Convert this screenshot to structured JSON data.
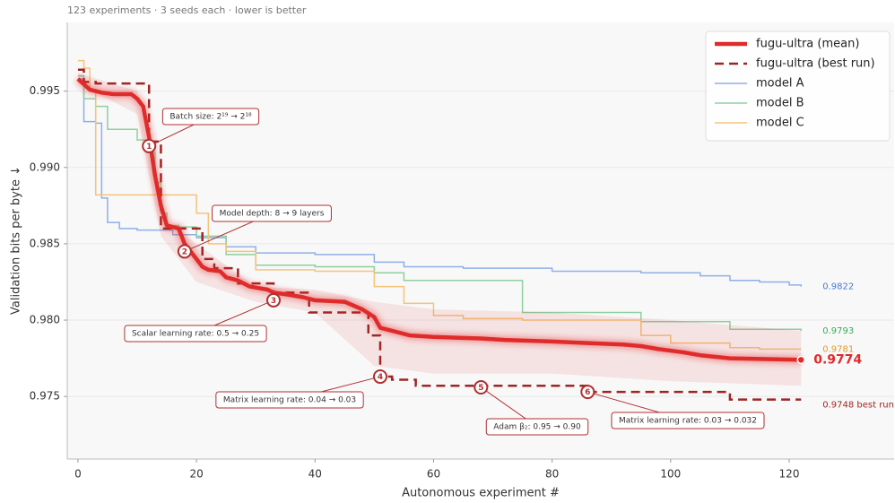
{
  "chart_data": {
    "type": "line",
    "subtitle": "123 experiments · 3 seeds each · lower is better",
    "x_label": "Autonomous experiment #",
    "y_label": "Validation bits per byte  ↓",
    "xlim": [
      -1.8,
      137.7
    ],
    "ylim": [
      0.9709,
      0.9995
    ],
    "xticks": [
      0,
      20,
      40,
      60,
      80,
      100,
      120
    ],
    "yticks": [
      0.975,
      {
        "value": 0.98,
        "label": "0.980"
      },
      0.985,
      {
        "value": 0.99,
        "label": "0.990"
      },
      0.995
    ],
    "grid": true,
    "legend": "upper right",
    "series": [
      {
        "name": "fugu-ultra (mean)",
        "color": "#e02b2b",
        "style": "thick",
        "x": [
          0,
          2,
          4,
          6,
          9,
          10,
          11,
          12,
          13,
          14,
          15,
          17,
          18,
          19,
          20,
          21,
          22,
          24,
          25,
          27,
          29,
          32,
          33,
          35,
          38,
          40,
          45,
          48,
          50,
          51,
          53,
          56,
          60,
          68,
          72,
          80,
          86,
          92,
          95,
          98,
          102,
          105,
          110,
          122
        ],
        "values": [
          0.9958,
          0.9951,
          0.9949,
          0.9948,
          0.9948,
          0.9945,
          0.994,
          0.992,
          0.9895,
          0.9875,
          0.9862,
          0.986,
          0.985,
          0.9845,
          0.984,
          0.9835,
          0.9833,
          0.9832,
          0.9828,
          0.9826,
          0.9822,
          0.982,
          0.9818,
          0.9817,
          0.9815,
          0.9813,
          0.9812,
          0.9807,
          0.9802,
          0.9795,
          0.9793,
          0.979,
          0.9789,
          0.9788,
          0.9787,
          0.9786,
          0.9785,
          0.9784,
          0.9783,
          0.9781,
          0.9779,
          0.9777,
          0.9775,
          0.9774
        ],
        "band_x": [
          0,
          10,
          14,
          20,
          30,
          40,
          50,
          60,
          80,
          100,
          122
        ],
        "band_lower": [
          0.9955,
          0.9935,
          0.9855,
          0.9825,
          0.9812,
          0.9805,
          0.977,
          0.9765,
          0.9765,
          0.976,
          0.9757
        ],
        "band_upper": [
          0.9962,
          0.995,
          0.9868,
          0.985,
          0.9822,
          0.982,
          0.9812,
          0.9807,
          0.9805,
          0.98,
          0.9793
        ],
        "end_label": "0.9774"
      },
      {
        "name": "fugu-ultra (best run)",
        "color": "#a02424",
        "style": "dashed",
        "x": [
          0,
          1,
          3,
          12,
          14,
          21,
          23,
          27,
          33,
          39,
          49,
          51,
          53,
          57,
          86,
          110,
          122
        ],
        "values": [
          0.9964,
          0.9956,
          0.9955,
          0.9917,
          0.986,
          0.984,
          0.9834,
          0.9824,
          0.9818,
          0.9805,
          0.979,
          0.9763,
          0.9761,
          0.9757,
          0.9753,
          0.9748,
          0.9748
        ],
        "end_label": "0.9748  best run"
      },
      {
        "name": "model A",
        "color": "#8fb0e8",
        "style": "thin",
        "x": [
          0,
          1,
          3,
          4,
          5,
          7,
          10,
          16,
          20,
          25,
          30,
          40,
          50,
          55,
          65,
          80,
          95,
          105,
          110,
          115,
          120,
          122
        ],
        "values": [
          0.9958,
          0.993,
          0.9929,
          0.988,
          0.9864,
          0.986,
          0.9859,
          0.9856,
          0.9854,
          0.9848,
          0.9844,
          0.9843,
          0.9838,
          0.9835,
          0.9834,
          0.9832,
          0.9831,
          0.9829,
          0.9826,
          0.9825,
          0.9823,
          0.9822
        ],
        "end_label": "0.9822",
        "label_color": "#4a78d0"
      },
      {
        "name": "model B",
        "color": "#8fcf9f",
        "style": "thin",
        "x": [
          0,
          1,
          3,
          5,
          8,
          10,
          12,
          13,
          14,
          15,
          17,
          20,
          25,
          30,
          40,
          50,
          55,
          65,
          75,
          95,
          110,
          122
        ],
        "values": [
          0.996,
          0.9945,
          0.994,
          0.9925,
          0.9925,
          0.9918,
          0.991,
          0.989,
          0.987,
          0.9862,
          0.9861,
          0.9855,
          0.9843,
          0.9836,
          0.9835,
          0.9831,
          0.9826,
          0.9826,
          0.9805,
          0.9799,
          0.9794,
          0.9793
        ],
        "end_label": "0.9793",
        "label_color": "#3aa85a"
      },
      {
        "name": "model C",
        "color": "#f5c37a",
        "style": "thin",
        "x": [
          0,
          1,
          2,
          3,
          10,
          15,
          20,
          22,
          25,
          30,
          40,
          50,
          55,
          60,
          65,
          75,
          95,
          100,
          110,
          115,
          122
        ],
        "values": [
          0.997,
          0.9965,
          0.995,
          0.9882,
          0.9882,
          0.9882,
          0.987,
          0.985,
          0.9845,
          0.9833,
          0.9832,
          0.9822,
          0.9811,
          0.9803,
          0.9801,
          0.98,
          0.979,
          0.9785,
          0.9782,
          0.9781,
          0.9781
        ],
        "end_label": "0.9781",
        "label_color": "#e09a2a"
      }
    ],
    "annotations": [
      {
        "marker": "1",
        "text": "Batch size:  2¹⁹ → 2¹⁸",
        "x": 12,
        "y": 0.9914
      },
      {
        "marker": "2",
        "text": "Model depth:  8 → 9 layers",
        "x": 18,
        "y": 0.9845
      },
      {
        "marker": "3",
        "text": "Scalar learning rate:  0.5 → 0.25",
        "x": 33,
        "y": 0.9813
      },
      {
        "marker": "4",
        "text": "Matrix learning rate:  0.04 → 0.03",
        "x": 51,
        "y": 0.9763
      },
      {
        "marker": "5",
        "text": "Adam β₂:  0.95 → 0.90",
        "x": 68,
        "y": 0.9756
      },
      {
        "marker": "6",
        "text": "Matrix learning rate:  0.03 → 0.032",
        "x": 86,
        "y": 0.9753
      }
    ]
  }
}
